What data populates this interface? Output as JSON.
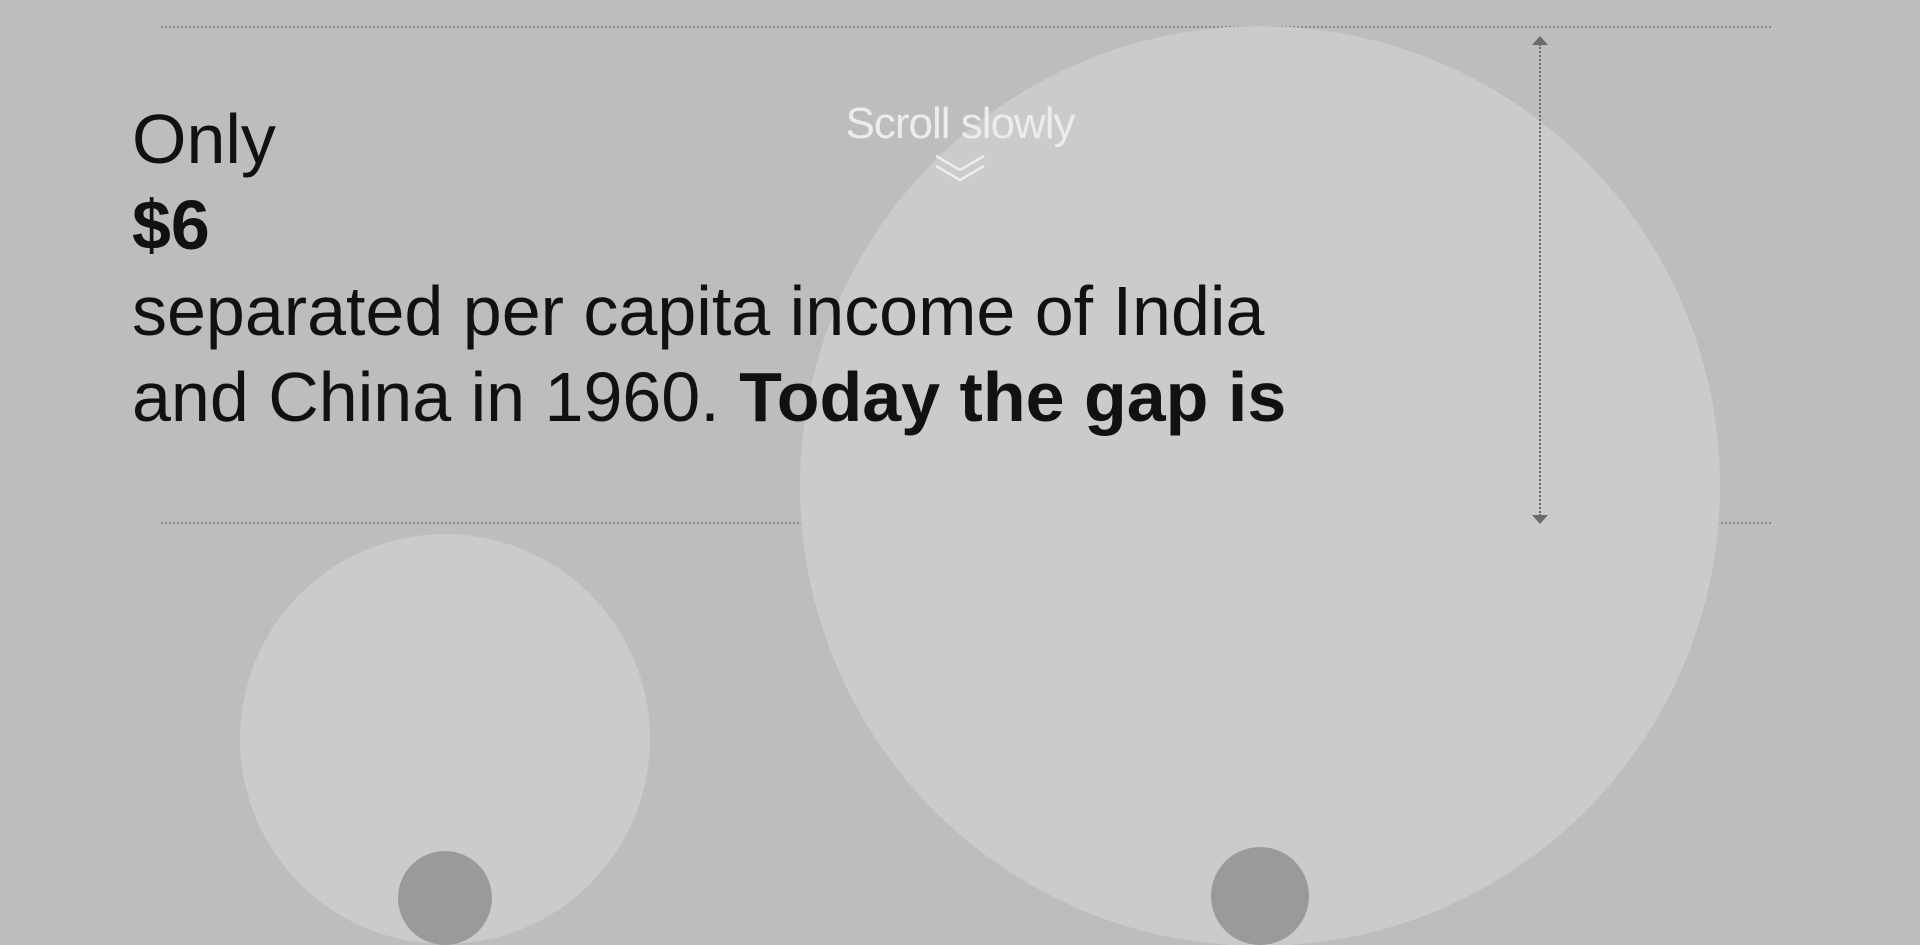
{
  "scroll_hint": {
    "label": "Scroll slowly",
    "icon": "double-chevron-down-icon"
  },
  "headline": {
    "line1": "Only",
    "amount": "$6",
    "line3": "separated per capita income of India",
    "line4_regular": "and China in 1960. ",
    "line4_bold": "Today the gap is"
  },
  "colors": {
    "background": "#bdbdbd",
    "circle": "#cbcbcb",
    "dot": "#9a9a9a",
    "text": "#111111",
    "hint": "#ececec"
  }
}
